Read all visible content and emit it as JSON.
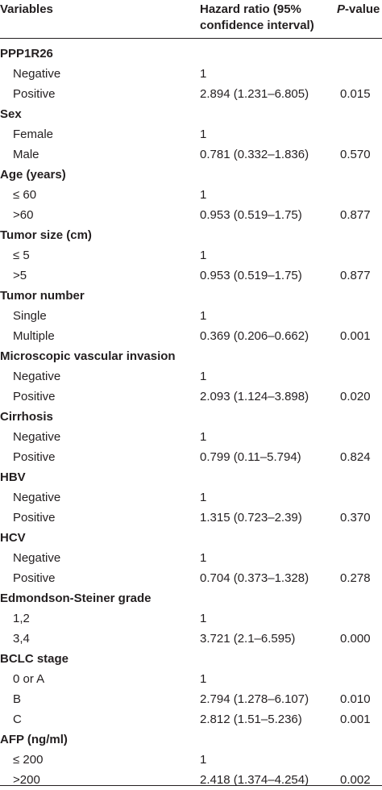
{
  "header": {
    "variables": "Variables",
    "hazard_ratio_line1": "Hazard ratio (95%",
    "hazard_ratio_line2": "confidence interval)",
    "p_value_italic": "P",
    "p_value_rest": "-value"
  },
  "rows": [
    {
      "type": "group",
      "label": "PPP1R26"
    },
    {
      "type": "sub",
      "label": "Negative",
      "hr": "1",
      "p": ""
    },
    {
      "type": "sub",
      "label": "Positive",
      "hr": "2.894 (1.231–6.805)",
      "p": "0.015"
    },
    {
      "type": "group",
      "label": "Sex"
    },
    {
      "type": "sub",
      "label": "Female",
      "hr": "1",
      "p": ""
    },
    {
      "type": "sub",
      "label": "Male",
      "hr": "0.781 (0.332–1.836)",
      "p": "0.570"
    },
    {
      "type": "group",
      "label": "Age (years)"
    },
    {
      "type": "sub",
      "label": "≤ 60",
      "hr": "1",
      "p": ""
    },
    {
      "type": "sub",
      "label": ">60",
      "hr": "0.953 (0.519–1.75)",
      "p": "0.877"
    },
    {
      "type": "group",
      "label": "Tumor size (cm)"
    },
    {
      "type": "sub",
      "label": "≤ 5",
      "hr": "1",
      "p": ""
    },
    {
      "type": "sub",
      "label": ">5",
      "hr": "0.953 (0.519–1.75)",
      "p": "0.877"
    },
    {
      "type": "group",
      "label": "Tumor number"
    },
    {
      "type": "sub",
      "label": "Single",
      "hr": "1",
      "p": ""
    },
    {
      "type": "sub",
      "label": "Multiple",
      "hr": "0.369 (0.206–0.662)",
      "p": "0.001"
    },
    {
      "type": "group",
      "label": "Microscopic vascular invasion"
    },
    {
      "type": "sub",
      "label": "Negative",
      "hr": "1",
      "p": ""
    },
    {
      "type": "sub",
      "label": "Positive",
      "hr": "2.093 (1.124–3.898)",
      "p": "0.020"
    },
    {
      "type": "group",
      "label": "Cirrhosis"
    },
    {
      "type": "sub",
      "label": "Negative",
      "hr": "1",
      "p": ""
    },
    {
      "type": "sub",
      "label": "Positive",
      "hr": "0.799 (0.11–5.794)",
      "p": "0.824"
    },
    {
      "type": "group",
      "label": "HBV"
    },
    {
      "type": "sub",
      "label": "Negative",
      "hr": "1",
      "p": ""
    },
    {
      "type": "sub",
      "label": "Positive",
      "hr": "1.315 (0.723–2.39)",
      "p": "0.370"
    },
    {
      "type": "group",
      "label": "HCV"
    },
    {
      "type": "sub",
      "label": "Negative",
      "hr": "1",
      "p": ""
    },
    {
      "type": "sub",
      "label": "Positive",
      "hr": "0.704 (0.373–1.328)",
      "p": "0.278"
    },
    {
      "type": "group",
      "label": "Edmondson-Steiner grade"
    },
    {
      "type": "sub",
      "label": "1,2",
      "hr": "1",
      "p": ""
    },
    {
      "type": "sub",
      "label": "3,4",
      "hr": "3.721 (2.1–6.595)",
      "p": "0.000"
    },
    {
      "type": "group",
      "label": "BCLC stage"
    },
    {
      "type": "sub",
      "label": "0 or A",
      "hr": "1",
      "p": ""
    },
    {
      "type": "sub",
      "label": "B",
      "hr": "2.794 (1.278–6.107)",
      "p": "0.010"
    },
    {
      "type": "sub",
      "label": "C",
      "hr": "2.812 (1.51–5.236)",
      "p": "0.001"
    },
    {
      "type": "group",
      "label": "AFP (ng/ml)"
    },
    {
      "type": "sub",
      "label": "≤ 200",
      "hr": "1",
      "p": ""
    },
    {
      "type": "sub",
      "label": ">200",
      "hr": "2.418 (1.374–4.254)",
      "p": "0.002"
    }
  ]
}
